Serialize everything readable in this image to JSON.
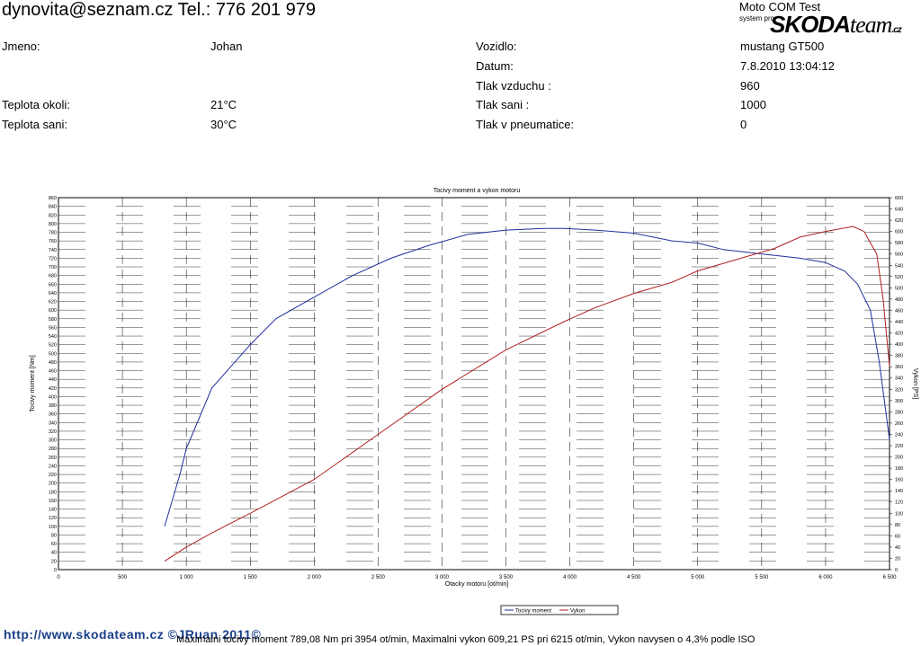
{
  "header": {
    "contact": "dynovita@seznam.cz Tel.: 776 201 979",
    "brand_title": "Moto COM Test",
    "brand_sub": "system pro",
    "logo_bold": "SKODA",
    "logo_light": "team",
    "logo_suffix": ".cz"
  },
  "info": {
    "jmeno_label": "Jmeno:",
    "jmeno_value": "Johan",
    "vozidlo_label": "Vozidlo:",
    "vozidlo_value": "mustang GT500",
    "datum_label": "Datum:",
    "datum_value": "7.8.2010 13:04:12",
    "tlak_vzduchu_label": "Tlak vzduchu :",
    "tlak_vzduchu_value": "960",
    "teplota_okoli_label": "Teplota okoli:",
    "teplota_okoli_value": "21°C",
    "tlak_sani_label": "Tlak sani :",
    "tlak_sani_value": "1000",
    "teplota_sani_label": "Teplota sani:",
    "teplota_sani_value": "30°C",
    "tlak_pneu_label": "Tlak v pneumatice:",
    "tlak_pneu_value": "0"
  },
  "chart_data": {
    "type": "line",
    "title": "Tocivy moment a vykon motoru",
    "xlabel": "Otacky motoru [ot/min]",
    "ylabel": "Tocivy moment [Nm]",
    "y2label": "Vykon [PS]",
    "xlim": [
      0,
      6500
    ],
    "ylim": [
      0,
      860
    ],
    "y2lim": [
      0,
      660
    ],
    "x_ticks": [
      0,
      500,
      1000,
      1500,
      2000,
      2500,
      3000,
      3500,
      4000,
      4500,
      5000,
      5500,
      6000,
      6500
    ],
    "x_tick_labels": [
      "0",
      "500",
      "1 000",
      "1 500",
      "2 000",
      "2 500",
      "3 000",
      "3 500",
      "4 000",
      "4 500",
      "5 000",
      "5 500",
      "6 000",
      "6 500"
    ],
    "y_tick_step": 20,
    "y2_tick_step": 20,
    "grid": true,
    "legend_position": "bottom-center",
    "series": [
      {
        "name": "Tocivy moment",
        "axis": "left",
        "color": "#1f2f9e",
        "x": [
          830,
          950,
          1000,
          1100,
          1200,
          1350,
          1500,
          1700,
          2000,
          2300,
          2600,
          2900,
          3200,
          3500,
          3800,
          3954,
          4200,
          4500,
          4800,
          5000,
          5200,
          5500,
          5800,
          6000,
          6150,
          6250,
          6350,
          6420,
          6500
        ],
        "values": [
          100,
          220,
          280,
          350,
          420,
          470,
          520,
          580,
          630,
          680,
          720,
          750,
          775,
          785,
          789,
          789,
          785,
          778,
          760,
          755,
          740,
          730,
          720,
          710,
          690,
          660,
          600,
          480,
          300
        ]
      },
      {
        "name": "Vykon",
        "axis": "right",
        "color": "#b02020",
        "x": [
          830,
          1000,
          1200,
          1500,
          2000,
          2500,
          3000,
          3500,
          3954,
          4200,
          4500,
          4800,
          5000,
          5300,
          5600,
          5800,
          6000,
          6215,
          6300,
          6400,
          6450,
          6500
        ],
        "values": [
          15,
          40,
          65,
          100,
          160,
          240,
          320,
          390,
          440,
          465,
          490,
          510,
          530,
          550,
          570,
          590,
          600,
          609,
          600,
          560,
          480,
          360
        ]
      }
    ]
  },
  "footer": {
    "link": "http://www.skodateam.cz ©JRuan 2011©",
    "stats": "Maximalni tocivy moment 789,08 Nm pri 3954 ot/min,  Maximalni vykon 609,21 PS pri 6215 ot/min,  Vykon navysen o 4,3% podle ISO"
  }
}
